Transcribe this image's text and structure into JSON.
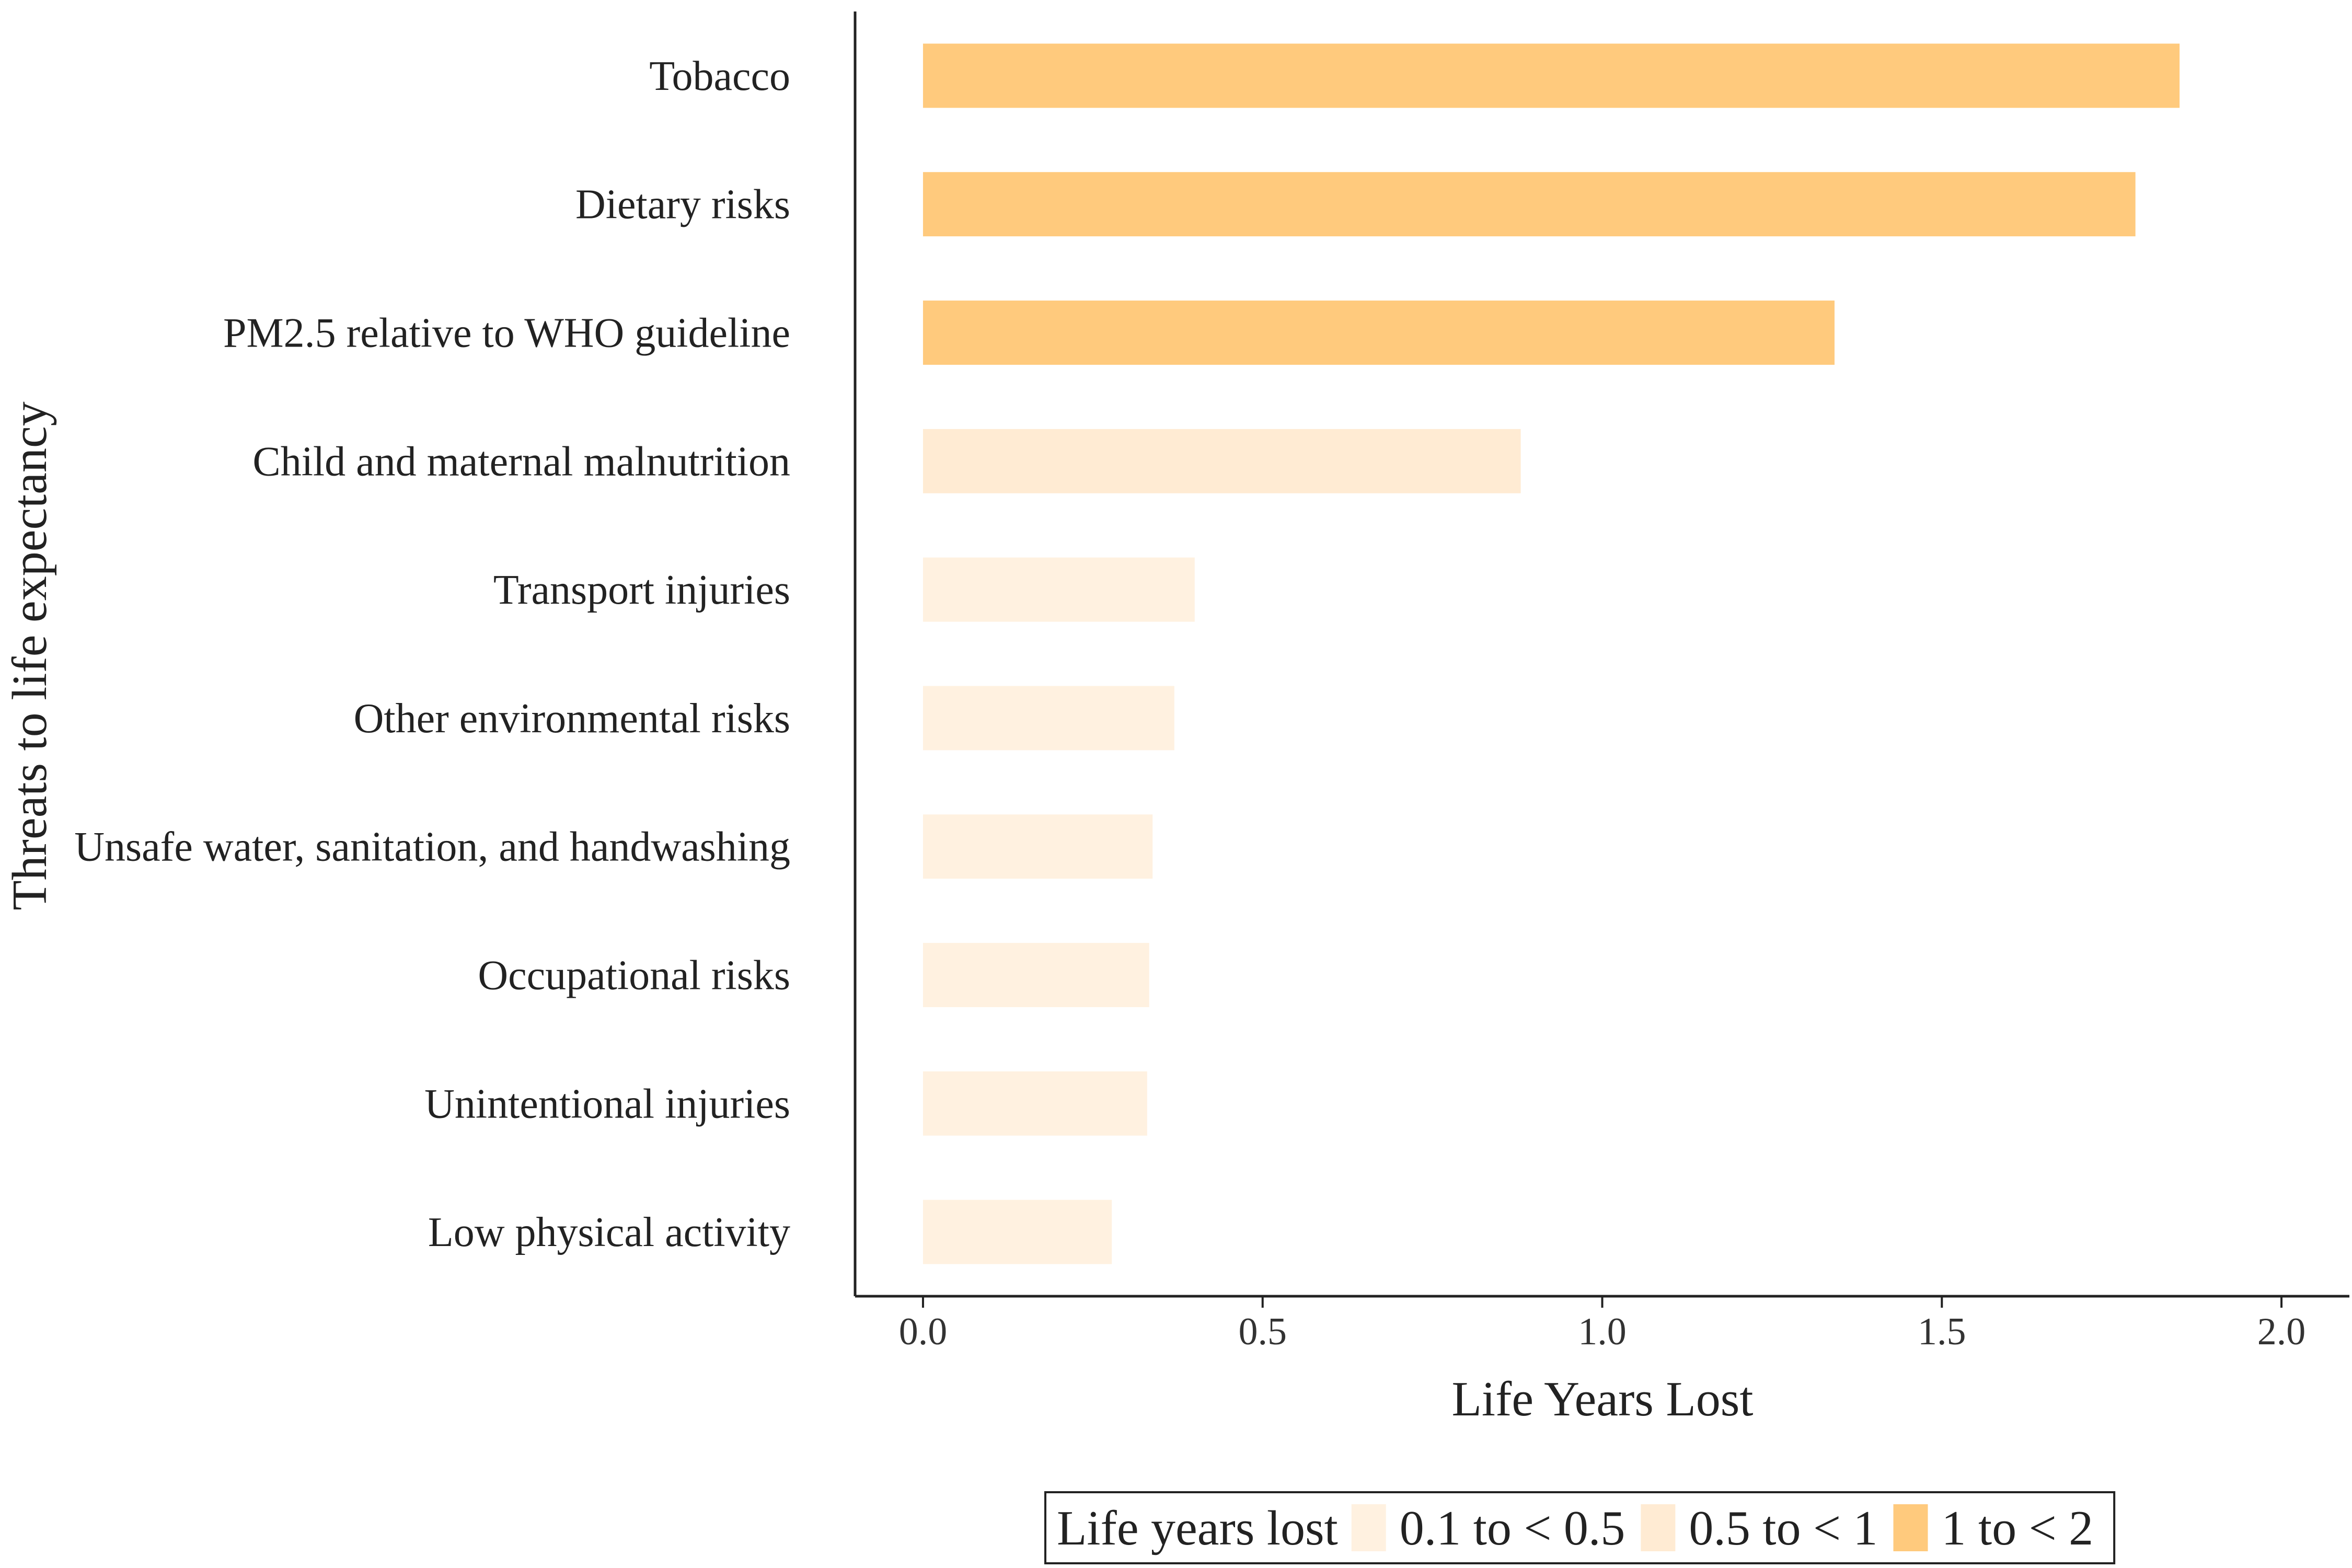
{
  "chart_data": {
    "type": "bar",
    "orientation": "horizontal",
    "categories": [
      "Tobacco",
      "Dietary risks",
      "PM2.5 relative to WHO guideline",
      "Child and maternal malnutrition",
      "Transport injuries",
      "Other environmental risks",
      "Unsafe water, sanitation, and handwashing",
      "Occupational risks",
      "Unintentional injuries",
      "Low physical activity"
    ],
    "values": [
      1.85,
      1.785,
      1.342,
      0.88,
      0.4,
      0.37,
      0.338,
      0.333,
      0.33,
      0.278
    ],
    "groups": [
      "1 to < 2",
      "1 to < 2",
      "1 to < 2",
      "0.5 to < 1",
      "0.1 to < 0.5",
      "0.1 to < 0.5",
      "0.1 to < 0.5",
      "0.1 to < 0.5",
      "0.1 to < 0.5",
      "0.1 to < 0.5"
    ],
    "xlabel": "Life Years Lost",
    "ylabel": "Threats to life expectancy",
    "xlim": [
      -0.1,
      2.1
    ],
    "xticks": [
      0.0,
      0.5,
      1.0,
      1.5,
      2.0
    ],
    "xtick_labels": [
      "0.0",
      "0.5",
      "1.0",
      "1.5",
      "2.0"
    ],
    "grid": false,
    "legend": {
      "title": "Life years lost",
      "placement": "bottom",
      "entries": [
        {
          "label": "0.1 to < 0.5",
          "color": "#FFF1E0"
        },
        {
          "label": "0.5 to < 1",
          "color": "#FFEBD3"
        },
        {
          "label": "1 to < 2",
          "color": "#FFCA7D"
        }
      ]
    }
  }
}
